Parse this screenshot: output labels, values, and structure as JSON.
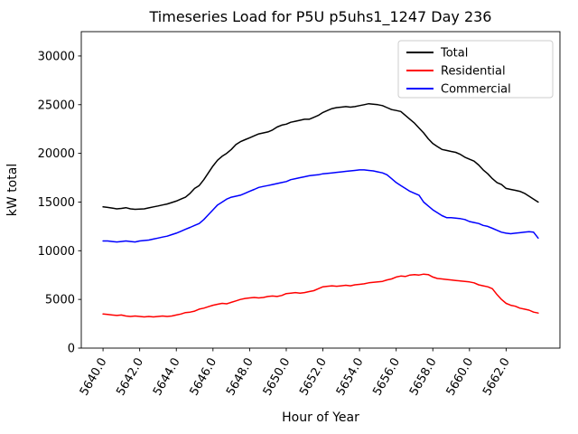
{
  "chart_data": {
    "type": "line",
    "title": "Timeseries Load for P5U p5uhs1_1247  Day 236",
    "xlabel": "Hour of Year",
    "ylabel": "kW total",
    "xlim": [
      5638.8125,
      5664.9375
    ],
    "ylim": [
      0,
      32500
    ],
    "xticks": [
      5640,
      5642,
      5644,
      5646,
      5648,
      5650,
      5652,
      5654,
      5656,
      5658,
      5660,
      5662
    ],
    "xtick_labels": [
      "5640.0",
      "5642.0",
      "5644.0",
      "5646.0",
      "5648.0",
      "5650.0",
      "5652.0",
      "5654.0",
      "5656.0",
      "5658.0",
      "5660.0",
      "5662.0"
    ],
    "yticks": [
      0,
      5000,
      10000,
      15000,
      20000,
      25000,
      30000
    ],
    "grid": false,
    "legend_position": "upper right",
    "x_start": 5640,
    "x_step": 0.25,
    "series": [
      {
        "name": "Total",
        "color": "#000000",
        "values": [
          14500,
          14450,
          14380,
          14300,
          14350,
          14420,
          14300,
          14250,
          14280,
          14300,
          14400,
          14500,
          14600,
          14700,
          14800,
          14950,
          15100,
          15300,
          15500,
          15900,
          16400,
          16700,
          17300,
          18000,
          18700,
          19300,
          19700,
          20000,
          20400,
          20900,
          21200,
          21400,
          21600,
          21800,
          22000,
          22100,
          22200,
          22400,
          22700,
          22900,
          23000,
          23200,
          23300,
          23400,
          23500,
          23500,
          23700,
          23900,
          24200,
          24400,
          24600,
          24700,
          24750,
          24800,
          24750,
          24800,
          24900,
          25000,
          25100,
          25050,
          25000,
          24900,
          24700,
          24500,
          24400,
          24300,
          23900,
          23500,
          23100,
          22600,
          22100,
          21500,
          21000,
          20700,
          20400,
          20300,
          20200,
          20100,
          19900,
          19600,
          19400,
          19200,
          18800,
          18300,
          17900,
          17400,
          17000,
          16800,
          16400,
          16300,
          16200,
          16100,
          15900,
          15600,
          15300,
          15000
        ]
      },
      {
        "name": "Residential",
        "color": "#ff0000",
        "values": [
          3500,
          3450,
          3400,
          3350,
          3400,
          3300,
          3250,
          3300,
          3250,
          3200,
          3250,
          3200,
          3250,
          3300,
          3250,
          3300,
          3400,
          3500,
          3650,
          3700,
          3800,
          4000,
          4100,
          4250,
          4400,
          4500,
          4600,
          4550,
          4700,
          4850,
          5000,
          5100,
          5150,
          5200,
          5150,
          5200,
          5300,
          5350,
          5300,
          5400,
          5600,
          5650,
          5700,
          5650,
          5700,
          5800,
          5900,
          6100,
          6300,
          6350,
          6400,
          6350,
          6400,
          6450,
          6400,
          6500,
          6550,
          6600,
          6700,
          6750,
          6800,
          6850,
          7000,
          7100,
          7300,
          7400,
          7350,
          7500,
          7550,
          7500,
          7600,
          7550,
          7300,
          7150,
          7100,
          7050,
          7000,
          6950,
          6900,
          6850,
          6800,
          6700,
          6500,
          6400,
          6300,
          6100,
          5500,
          5000,
          4600,
          4400,
          4300,
          4100,
          4000,
          3900,
          3700,
          3600
        ]
      },
      {
        "name": "Commercial",
        "color": "#0000ff",
        "values": [
          11000,
          11000,
          10950,
          10900,
          10950,
          11000,
          10950,
          10900,
          11000,
          11050,
          11100,
          11200,
          11300,
          11400,
          11500,
          11650,
          11800,
          12000,
          12200,
          12400,
          12600,
          12800,
          13200,
          13700,
          14200,
          14700,
          15000,
          15300,
          15500,
          15600,
          15700,
          15900,
          16100,
          16300,
          16500,
          16600,
          16700,
          16800,
          16900,
          17000,
          17100,
          17300,
          17400,
          17500,
          17600,
          17700,
          17750,
          17800,
          17900,
          17950,
          18000,
          18050,
          18100,
          18150,
          18200,
          18250,
          18300,
          18300,
          18250,
          18200,
          18100,
          18000,
          17800,
          17400,
          17000,
          16700,
          16400,
          16100,
          15900,
          15700,
          15000,
          14600,
          14200,
          13900,
          13600,
          13400,
          13400,
          13350,
          13300,
          13200,
          13000,
          12900,
          12800,
          12600,
          12500,
          12300,
          12100,
          11900,
          11800,
          11750,
          11800,
          11850,
          11900,
          11950,
          11900,
          11300
        ]
      }
    ]
  }
}
